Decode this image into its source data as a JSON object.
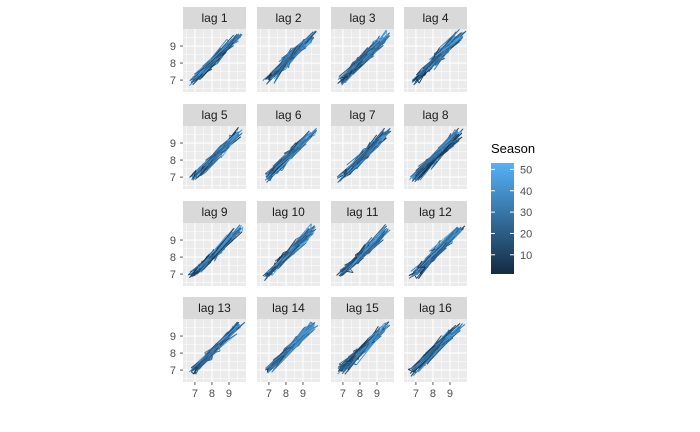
{
  "chart_data": {
    "type": "line",
    "kind": "lag-plot",
    "panels": [
      "lag 1",
      "lag 2",
      "lag 3",
      "lag 4",
      "lag 5",
      "lag 6",
      "lag 7",
      "lag 8",
      "lag 9",
      "lag 10",
      "lag 11",
      "lag 12",
      "lag 13",
      "lag 14",
      "lag 15",
      "lag 16"
    ],
    "facet_rows": 4,
    "facet_cols": 4,
    "x_ticks": [
      7,
      8,
      9
    ],
    "y_ticks": [
      7,
      8,
      9
    ],
    "xlim": [
      6.3,
      10.0
    ],
    "ylim": [
      6.3,
      10.0
    ],
    "grid": true,
    "legend": {
      "title": "Season",
      "position": "right",
      "ticks": [
        10,
        20,
        30,
        40,
        50
      ],
      "range": [
        1,
        53
      ],
      "color_low": "#132B43",
      "color_high": "#56B1F7"
    },
    "colors": {
      "panel_bg": "#EBEBEB",
      "grid": "#FFFFFF",
      "strip_bg": "#D9D9D9"
    },
    "series_description": "Lagged values of a seasonal series; points concentrated along the diagonal from about (6.7, 6.7) to (9.8, 9.8), colored by season index."
  }
}
